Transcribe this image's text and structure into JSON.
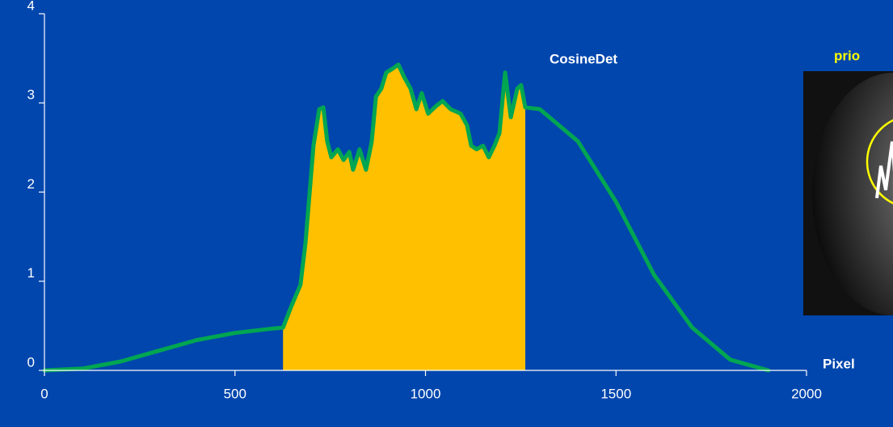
{
  "chart_data": {
    "type": "line",
    "annotation": "CosineDet",
    "side_title": "prio",
    "xlabel": "Pixel",
    "xlim": [
      0,
      2000
    ],
    "xticks": [
      0,
      500,
      1000,
      1500,
      2000
    ],
    "ylim": [
      0,
      4
    ],
    "yticks": [
      0,
      1,
      2,
      3,
      4
    ],
    "grid": false,
    "series": [
      {
        "color": "#ffc000",
        "fill": true,
        "x": [
          626,
          647,
          672,
          685,
          694,
          706,
          721,
          732,
          742,
          753,
          770,
          785,
          800,
          810,
          827,
          844,
          859,
          870,
          884,
          897,
          912,
          929,
          944,
          961,
          976,
          990,
          1007,
          1029,
          1045,
          1066,
          1092,
          1109,
          1120,
          1134,
          1151,
          1166,
          1181,
          1194,
          1209,
          1224,
          1241,
          1251,
          1262
        ],
        "values": [
          0.48,
          0.71,
          0.96,
          1.43,
          1.89,
          2.52,
          2.93,
          2.95,
          2.57,
          2.39,
          2.48,
          2.36,
          2.45,
          2.25,
          2.48,
          2.25,
          2.57,
          3.07,
          3.16,
          3.34,
          3.38,
          3.43,
          3.29,
          3.16,
          2.93,
          3.11,
          2.88,
          2.97,
          3.02,
          2.93,
          2.88,
          2.75,
          2.52,
          2.48,
          2.52,
          2.39,
          2.52,
          2.66,
          3.34,
          2.84,
          3.16,
          3.2,
          2.95
        ]
      },
      {
        "color": "#00a651",
        "fill": false,
        "x": [
          0,
          100,
          200,
          300,
          400,
          500,
          600,
          626,
          647,
          672,
          685,
          694,
          706,
          721,
          732,
          742,
          753,
          770,
          785,
          800,
          810,
          827,
          844,
          859,
          870,
          884,
          897,
          912,
          929,
          944,
          961,
          976,
          990,
          1007,
          1029,
          1045,
          1066,
          1092,
          1109,
          1120,
          1134,
          1151,
          1166,
          1181,
          1194,
          1209,
          1224,
          1241,
          1251,
          1262,
          1300,
          1400,
          1500,
          1600,
          1700,
          1800,
          1900
        ],
        "values": [
          0,
          0.02,
          0.1,
          0.22,
          0.34,
          0.42,
          0.47,
          0.48,
          0.71,
          0.96,
          1.43,
          1.89,
          2.52,
          2.93,
          2.95,
          2.57,
          2.39,
          2.48,
          2.36,
          2.45,
          2.25,
          2.48,
          2.25,
          2.57,
          3.07,
          3.16,
          3.34,
          3.38,
          3.43,
          3.29,
          3.16,
          2.93,
          3.11,
          2.88,
          2.97,
          3.02,
          2.93,
          2.88,
          2.75,
          2.52,
          2.48,
          2.52,
          2.39,
          2.52,
          2.66,
          3.34,
          2.84,
          3.16,
          3.2,
          2.95,
          2.93,
          2.57,
          1.89,
          1.07,
          0.48,
          0.12,
          0
        ]
      }
    ]
  }
}
